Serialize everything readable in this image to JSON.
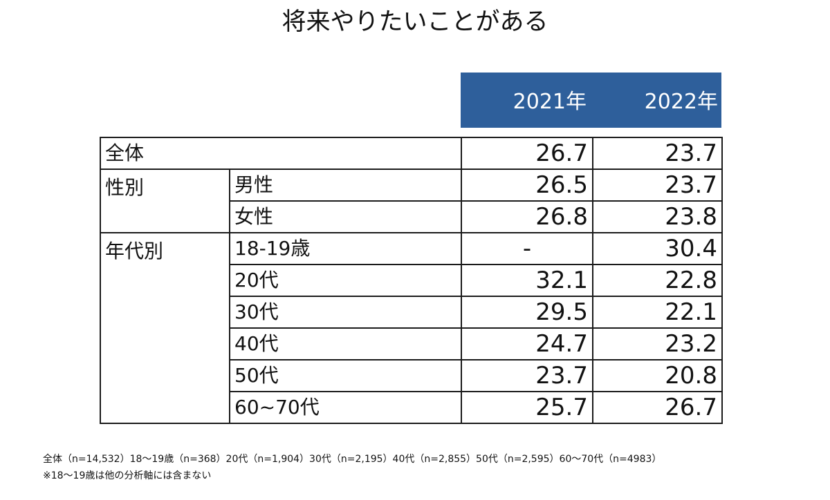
{
  "chart_data": {
    "type": "table",
    "title": "将来やりたいことがある",
    "columns": [
      "2021年",
      "2022年"
    ],
    "rows": [
      {
        "group": "全体",
        "label": "",
        "values": [
          "26.7",
          "23.7"
        ]
      },
      {
        "group": "性別",
        "label": "男性",
        "values": [
          "26.5",
          "23.7"
        ]
      },
      {
        "group": "",
        "label": "女性",
        "values": [
          "26.8",
          "23.8"
        ]
      },
      {
        "group": "年代別",
        "label": "18-19歳",
        "values": [
          "-",
          "30.4"
        ]
      },
      {
        "group": "",
        "label": "20代",
        "values": [
          "32.1",
          "22.8"
        ]
      },
      {
        "group": "",
        "label": "30代",
        "values": [
          "29.5",
          "22.1"
        ]
      },
      {
        "group": "",
        "label": "40代",
        "values": [
          "24.7",
          "23.2"
        ]
      },
      {
        "group": "",
        "label": "50代",
        "values": [
          "23.7",
          "20.8"
        ]
      },
      {
        "group": "",
        "label": "60~70代",
        "values": [
          "25.7",
          "26.7"
        ]
      }
    ],
    "header_color": "#2e5f9b"
  },
  "footnotes": [
    "全体（n=14,532）18～19歳（n=368）20代（n=1,904）30代（n=2,195）40代（n=2,855）50代（n=2,595）60～70代（n=4983）",
    "※18～19歳は他の分析軸には含まない"
  ]
}
